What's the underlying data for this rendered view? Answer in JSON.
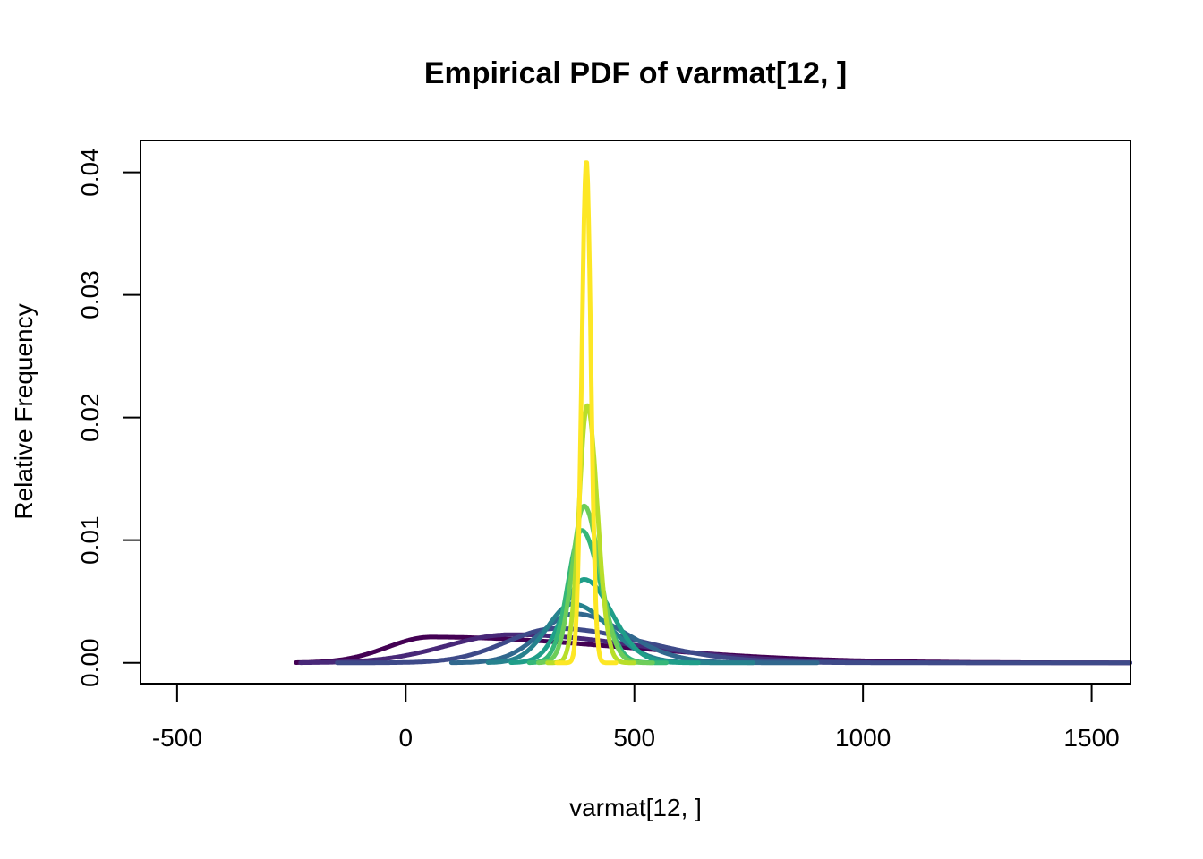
{
  "chart_data": {
    "type": "line",
    "title": "Empirical PDF of varmat[12, ]",
    "xlabel": "varmat[12, ]",
    "ylabel": "Relative Frequency",
    "xlim": [
      -580,
      1585
    ],
    "ylim": [
      -0.0017,
      0.0426
    ],
    "xticks": [
      -500,
      0,
      500,
      1000,
      1500
    ],
    "xtick_labels": [
      "-500",
      "0",
      "500",
      "1000",
      "1500"
    ],
    "yticks": [
      0.0,
      0.01,
      0.02,
      0.03,
      0.04
    ],
    "ytick_labels": [
      "0.00",
      "0.01",
      "0.02",
      "0.03",
      "0.04"
    ],
    "grid": false,
    "series": [
      {
        "color": "#FDE725",
        "mode": 395,
        "peak": 0.041,
        "sd_left": 10,
        "sd_right": 10,
        "x_min": 330,
        "x_max": 460
      },
      {
        "color": "#B8DE29",
        "mode": 397,
        "peak": 0.021,
        "sd_left": 18,
        "sd_right": 22,
        "x_min": 310,
        "x_max": 500
      },
      {
        "color": "#6DCD59",
        "mode": 390,
        "peak": 0.0128,
        "sd_left": 26,
        "sd_right": 34,
        "x_min": 290,
        "x_max": 540
      },
      {
        "color": "#35B779",
        "mode": 385,
        "peak": 0.0108,
        "sd_left": 30,
        "sd_right": 40,
        "x_min": 270,
        "x_max": 570
      },
      {
        "color": "#1F9E89",
        "mode": 390,
        "peak": 0.0068,
        "sd_left": 45,
        "sd_right": 60,
        "x_min": 230,
        "x_max": 640
      },
      {
        "color": "#26828E",
        "mode": 365,
        "peak": 0.0048,
        "sd_left": 55,
        "sd_right": 80,
        "x_min": 180,
        "x_max": 760
      },
      {
        "color": "#31688E",
        "mode": 370,
        "peak": 0.004,
        "sd_left": 75,
        "sd_right": 110,
        "x_min": 100,
        "x_max": 900
      },
      {
        "color": "#3E4A89",
        "mode": 330,
        "peak": 0.0028,
        "sd_left": 110,
        "sd_right": 190,
        "x_min": -150,
        "x_max": 1585
      },
      {
        "color": "#482878",
        "mode": 230,
        "peak": 0.0023,
        "sd_left": 140,
        "sd_right": 280,
        "x_min": -230,
        "x_max": 1585
      },
      {
        "color": "#440154",
        "mode": 55,
        "peak": 0.0021,
        "sd_left": 95,
        "sd_right": 420,
        "x_min": -240,
        "x_max": 1585
      }
    ]
  }
}
